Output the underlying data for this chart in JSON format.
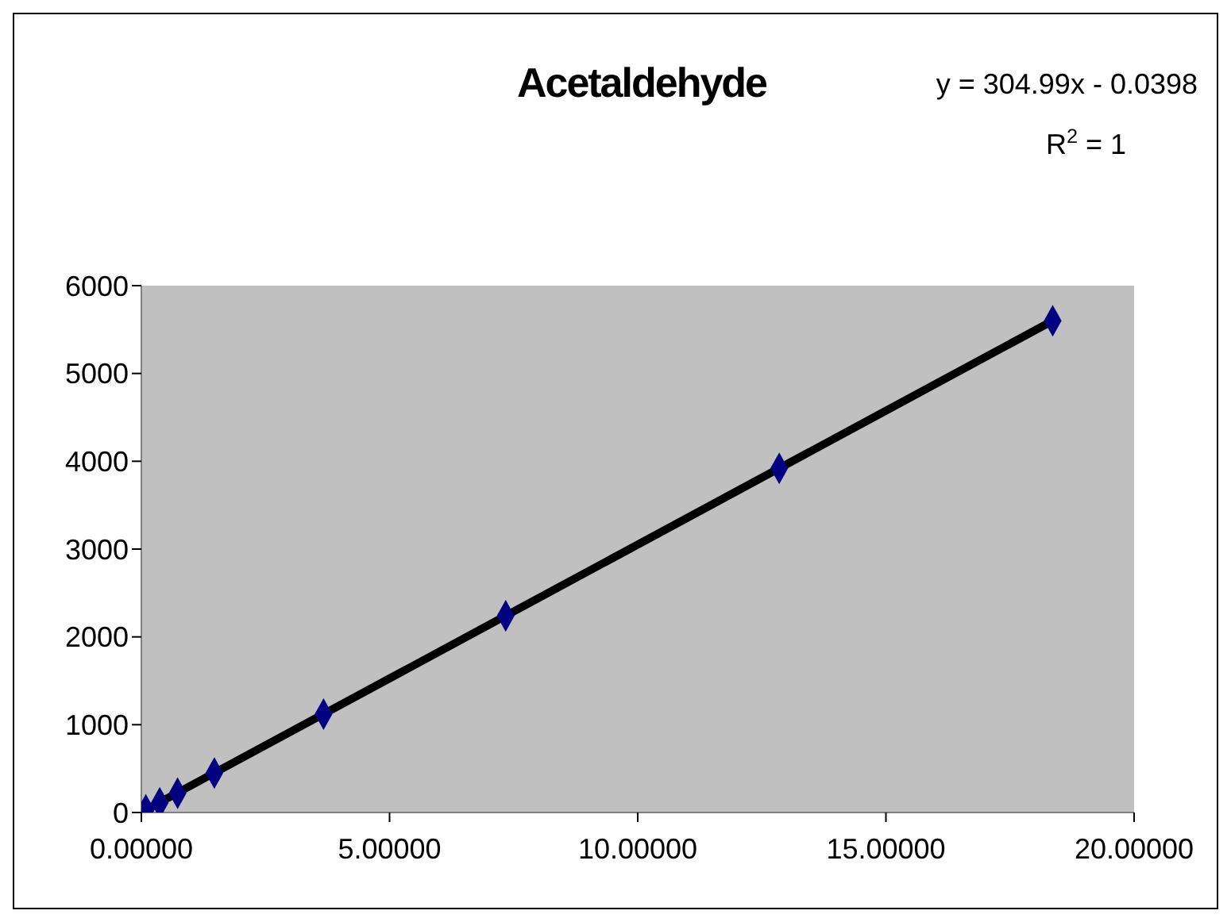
{
  "chart_data": {
    "type": "scatter",
    "title": "Acetaldehyde",
    "x": [
      0.09,
      0.37,
      0.73,
      1.47,
      3.67,
      7.34,
      12.85,
      18.36
    ],
    "series": [
      {
        "color": "#000080",
        "marker": "diamond",
        "values": [
          30,
          110,
          220,
          450,
          1120,
          2240,
          3920,
          5600
        ]
      },
      {
        "type": "line",
        "color": "#000000",
        "marker": "none",
        "x": [
          0.09,
          18.36
        ],
        "values": [
          30,
          5600
        ]
      }
    ],
    "xlim": [
      0,
      20
    ],
    "xticks": [
      {
        "value": 0,
        "label": "0.00000"
      },
      {
        "value": 5,
        "label": "5.00000"
      },
      {
        "value": 10,
        "label": "10.00000"
      },
      {
        "value": 15,
        "label": "15.00000"
      },
      {
        "value": 20,
        "label": "20.00000"
      }
    ],
    "ylim": [
      0,
      6000
    ],
    "yticks": [
      0,
      1000,
      2000,
      3000,
      4000,
      5000,
      6000
    ],
    "grid": false,
    "annotations": [
      "y = 304.99x - 0.0398",
      "R$^{2}$ = 1"
    ]
  }
}
